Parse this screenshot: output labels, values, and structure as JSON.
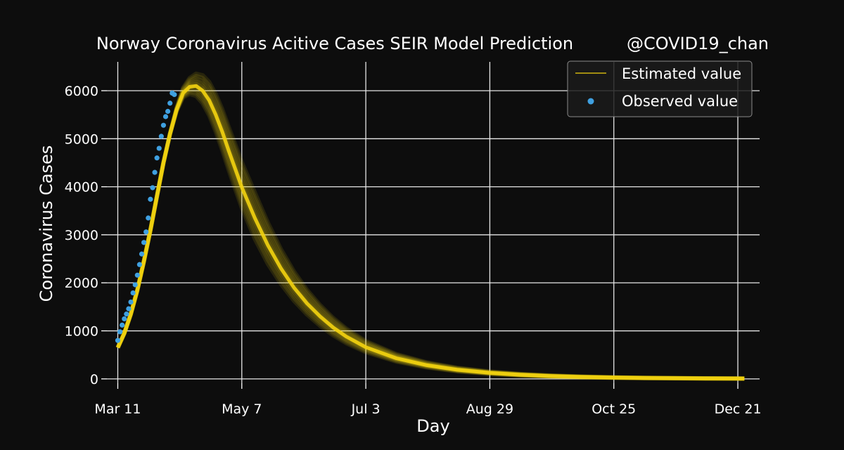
{
  "chart_data": {
    "type": "line",
    "title": "Norway Coronavirus Acitive Cases SEIR Model Prediction",
    "watermark": "@COVID19_chan",
    "xlabel": "Day",
    "ylabel": "Coronavirus Cases",
    "grid": true,
    "legend_position": "top-right",
    "x_ticks": [
      "Mar 11",
      "May 7",
      "Jul 3",
      "Aug 29",
      "Oct 25",
      "Dec 21"
    ],
    "x_range": [
      "Mar 6",
      "Dec 31"
    ],
    "y_ticks": [
      0,
      1000,
      2000,
      3000,
      4000,
      5000,
      6000
    ],
    "ylim": [
      -90,
      6600
    ],
    "colors": {
      "background": "#0d0d0d",
      "estimated": "#f2d20f",
      "observed": "#3fa0e0",
      "text": "#ffffff"
    },
    "series": [
      {
        "name": "Estimated value",
        "kind": "line-ensemble",
        "color": "#f2d20f",
        "x": [
          "Mar 11",
          "Mar 14",
          "Mar 17",
          "Mar 20",
          "Mar 23",
          "Mar 26",
          "Mar 29",
          "Apr 1",
          "Apr 4",
          "Apr 7",
          "Apr 10",
          "Apr 13",
          "Apr 16",
          "Apr 19",
          "Apr 22",
          "Apr 25",
          "Apr 28",
          "May 1",
          "May 4",
          "May 7",
          "May 13",
          "May 19",
          "May 25",
          "May 31",
          "Jun 6",
          "Jun 12",
          "Jun 18",
          "Jun 24",
          "Jul 3",
          "Jul 17",
          "Jul 31",
          "Aug 14",
          "Aug 29",
          "Sep 12",
          "Sep 26",
          "Oct 10",
          "Oct 25",
          "Nov 8",
          "Nov 22",
          "Dec 6",
          "Dec 21",
          "Dec 24"
        ],
        "values": [
          650,
          950,
          1350,
          1850,
          2450,
          3100,
          3800,
          4500,
          5100,
          5600,
          5950,
          6080,
          6100,
          6000,
          5800,
          5500,
          5150,
          4750,
          4370,
          3990,
          3350,
          2780,
          2300,
          1900,
          1570,
          1300,
          1070,
          880,
          660,
          430,
          285,
          190,
          125,
          85,
          58,
          40,
          27,
          19,
          14,
          10,
          7,
          6
        ]
      },
      {
        "name": "Observed value",
        "kind": "scatter",
        "color": "#3fa0e0",
        "x": [
          "Mar 11",
          "Mar 12",
          "Mar 13",
          "Mar 14",
          "Mar 15",
          "Mar 16",
          "Mar 17",
          "Mar 18",
          "Mar 19",
          "Mar 20",
          "Mar 21",
          "Mar 22",
          "Mar 23",
          "Mar 24",
          "Mar 25",
          "Mar 26",
          "Mar 27",
          "Mar 28",
          "Mar 29",
          "Mar 30",
          "Mar 31",
          "Apr 1",
          "Apr 2",
          "Apr 3",
          "Apr 4"
        ],
        "values": [
          800,
          980,
          1120,
          1250,
          1350,
          1460,
          1600,
          1790,
          1960,
          2160,
          2380,
          2600,
          2840,
          3060,
          3350,
          3740,
          3980,
          4300,
          4600,
          4800,
          5050,
          5280,
          5460,
          5570,
          5740
        ]
      }
    ],
    "extra_observed": [
      {
        "x": "Apr 5",
        "y": 5950
      },
      {
        "x": "Apr 6",
        "y": 5920
      }
    ]
  }
}
